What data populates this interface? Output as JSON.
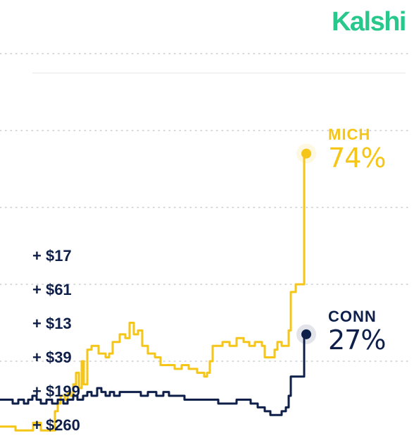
{
  "brand": {
    "logo_text": "Kalshi",
    "color": "#28c88c"
  },
  "trades": [
    "+ $17",
    "+ $61",
    "+ $13",
    "+ $39",
    "+ $199",
    "+ $260"
  ],
  "chart_data": {
    "type": "line",
    "grid": true,
    "legend": "end-of-line labels",
    "ylim": [
      0,
      100
    ],
    "series": [
      {
        "name": "MICH",
        "label": "MICH",
        "current": "74%",
        "color": "#f5c518",
        "values": [
          [
            0,
            3
          ],
          [
            20,
            3
          ],
          [
            22,
            2
          ],
          [
            45,
            2
          ],
          [
            47,
            4
          ],
          [
            55,
            4
          ],
          [
            58,
            2
          ],
          [
            75,
            2
          ],
          [
            78,
            7
          ],
          [
            82,
            9
          ],
          [
            86,
            11
          ],
          [
            92,
            10
          ],
          [
            96,
            12
          ],
          [
            100,
            11
          ],
          [
            104,
            14
          ],
          [
            108,
            17
          ],
          [
            112,
            13
          ],
          [
            116,
            20
          ],
          [
            119,
            14
          ],
          [
            124,
            23
          ],
          [
            130,
            24
          ],
          [
            140,
            22
          ],
          [
            150,
            21
          ],
          [
            155,
            22
          ],
          [
            160,
            25
          ],
          [
            170,
            27
          ],
          [
            178,
            26
          ],
          [
            184,
            30
          ],
          [
            190,
            27
          ],
          [
            196,
            28
          ],
          [
            202,
            24
          ],
          [
            210,
            22
          ],
          [
            220,
            21
          ],
          [
            228,
            19
          ],
          [
            238,
            19
          ],
          [
            248,
            18
          ],
          [
            258,
            19
          ],
          [
            268,
            18
          ],
          [
            280,
            17
          ],
          [
            290,
            16
          ],
          [
            294,
            17
          ],
          [
            298,
            20
          ],
          [
            302,
            24
          ],
          [
            306,
            24
          ],
          [
            316,
            25
          ],
          [
            326,
            24
          ],
          [
            336,
            26
          ],
          [
            346,
            25
          ],
          [
            354,
            24
          ],
          [
            362,
            25
          ],
          [
            372,
            24
          ],
          [
            376,
            21
          ],
          [
            386,
            21
          ],
          [
            390,
            23
          ],
          [
            394,
            25
          ],
          [
            400,
            24
          ],
          [
            406,
            24
          ],
          [
            410,
            28
          ],
          [
            413,
            38
          ],
          [
            420,
            40
          ],
          [
            430,
            40
          ],
          [
            432,
            74
          ],
          [
            435,
            74
          ]
        ]
      },
      {
        "name": "CONN",
        "label": "CONN",
        "current": "27%",
        "color": "#0e1f4a",
        "values": [
          [
            0,
            10
          ],
          [
            10,
            10
          ],
          [
            18,
            9
          ],
          [
            26,
            10
          ],
          [
            34,
            9
          ],
          [
            40,
            10
          ],
          [
            46,
            11
          ],
          [
            52,
            10
          ],
          [
            58,
            9
          ],
          [
            66,
            10
          ],
          [
            74,
            9
          ],
          [
            82,
            10
          ],
          [
            90,
            9
          ],
          [
            96,
            10
          ],
          [
            104,
            11
          ],
          [
            110,
            10
          ],
          [
            118,
            11
          ],
          [
            124,
            12
          ],
          [
            130,
            11
          ],
          [
            138,
            13
          ],
          [
            144,
            12
          ],
          [
            150,
            11
          ],
          [
            156,
            12
          ],
          [
            162,
            11
          ],
          [
            170,
            12
          ],
          [
            180,
            12
          ],
          [
            190,
            12
          ],
          [
            200,
            11
          ],
          [
            210,
            12
          ],
          [
            222,
            11
          ],
          [
            232,
            12
          ],
          [
            240,
            11
          ],
          [
            250,
            11
          ],
          [
            262,
            10
          ],
          [
            274,
            10
          ],
          [
            286,
            10
          ],
          [
            298,
            10
          ],
          [
            310,
            9
          ],
          [
            318,
            9
          ],
          [
            326,
            9
          ],
          [
            336,
            10
          ],
          [
            346,
            10
          ],
          [
            356,
            9
          ],
          [
            366,
            8
          ],
          [
            376,
            7
          ],
          [
            384,
            6
          ],
          [
            392,
            6
          ],
          [
            400,
            7
          ],
          [
            406,
            8
          ],
          [
            410,
            11
          ],
          [
            413,
            16
          ],
          [
            420,
            16
          ],
          [
            428,
            16
          ],
          [
            432,
            27
          ],
          [
            435,
            27
          ]
        ]
      }
    ]
  }
}
